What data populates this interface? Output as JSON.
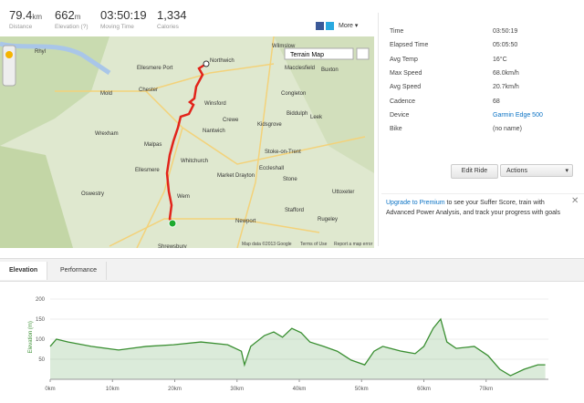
{
  "stats": [
    {
      "value": "79.4",
      "unit": "km",
      "label": "Distance"
    },
    {
      "value": "662",
      "unit": "m",
      "label": "Elevation (?)"
    },
    {
      "value": "03:50:19",
      "label": "Moving Time"
    },
    {
      "value": "1,334",
      "label": "Calories"
    }
  ],
  "share": {
    "more": "More"
  },
  "map": {
    "type_button": "Terrain Map",
    "attribution": "Map data ©2013 Google",
    "terms": "Terms of Use",
    "report": "Report a map error",
    "places": [
      "Northwich",
      "Chester",
      "Winsford",
      "Crewe",
      "Nantwich",
      "Whitchurch",
      "Wem",
      "Shrewsbury",
      "Stoke-on-Trent",
      "Macclesfield",
      "Stafford",
      "Newport",
      "Market Drayton",
      "Oswestry",
      "Wrexham",
      "Ellesmere Port",
      "Leek",
      "Buxton",
      "Stone",
      "Kidsgrove",
      "Wilmslow",
      "Mold",
      "Uttoxeter",
      "Rugeley",
      "Ellesmere",
      "Malpas",
      "Biddulph",
      "Eccleshall",
      "Congleton",
      "Rhyl"
    ]
  },
  "details": [
    [
      "Time",
      "03:50:19"
    ],
    [
      "Elapsed Time",
      "05:05:50"
    ],
    [
      "Avg Temp",
      "16°C"
    ],
    [
      "Max Speed",
      "68.0km/h"
    ],
    [
      "Avg Speed",
      "20.7km/h"
    ],
    [
      "Cadence",
      "68"
    ],
    [
      "Device",
      "Garmin Edge 500"
    ],
    [
      "Bike",
      "(no name)"
    ]
  ],
  "buttons": {
    "edit": "Edit Ride",
    "actions": "Actions"
  },
  "upgrade": {
    "link": "Upgrade to Premium",
    "text": " to see your Suffer Score, train with Advanced Power Analysis, and track your progress with goals"
  },
  "tabs": [
    "Elevation",
    "Performance"
  ],
  "elevation_chart": {
    "type": "area",
    "y_label": "Elevation (m)",
    "color": "#3a8f32",
    "x": [
      0,
      1,
      2.9,
      6.6,
      11,
      15.4,
      19.8,
      24.2,
      28.5,
      30.7,
      31.2,
      32.2,
      34.4,
      35.9,
      37.3,
      38.8,
      40.3,
      41.7,
      43.9,
      46.1,
      48.3,
      50.5,
      52,
      53.4,
      56.4,
      58.6,
      60,
      61.5,
      62.7,
      63.7,
      65.2,
      68.1,
      70.3,
      72.2,
      73.9,
      76.1,
      78.3,
      79.5
    ],
    "values": [
      82,
      100,
      93,
      82,
      73,
      82,
      86,
      93,
      86,
      70,
      36,
      82,
      109,
      118,
      105,
      127,
      116,
      93,
      82,
      70,
      48,
      36,
      70,
      82,
      70,
      64,
      82,
      127,
      150,
      93,
      77,
      82,
      59,
      25,
      9,
      25,
      36,
      36
    ],
    "xlim": [
      0,
      80
    ],
    "ylim": [
      0,
      210
    ],
    "xticks": [
      {
        "value": 0,
        "label": "0km"
      },
      {
        "value": 10,
        "label": "10km"
      },
      {
        "value": 20,
        "label": "20km"
      },
      {
        "value": 30,
        "label": "30km"
      },
      {
        "value": 40,
        "label": "40km"
      },
      {
        "value": 50,
        "label": "50km"
      },
      {
        "value": 60,
        "label": "60km"
      },
      {
        "value": 70,
        "label": "70km"
      }
    ],
    "yticks": [
      50,
      100,
      150,
      200
    ]
  }
}
